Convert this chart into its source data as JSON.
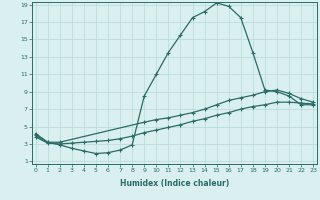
{
  "title": "",
  "xlabel": "Humidex (Indice chaleur)",
  "bg_color": "#daf0f0",
  "grid_color": "#b8d8d8",
  "line_color": "#2a6b65",
  "x_min": 0,
  "x_max": 23,
  "y_min": 1,
  "y_max": 19,
  "line1_x": [
    0,
    1,
    2,
    3,
    4,
    5,
    6,
    7,
    8,
    9,
    10,
    11,
    12,
    13,
    14,
    15,
    16,
    17,
    18,
    19,
    20,
    21,
    22,
    23
  ],
  "line1_y": [
    4.2,
    3.2,
    2.9,
    2.5,
    2.2,
    1.9,
    2.0,
    2.3,
    2.9,
    8.5,
    11.0,
    13.5,
    15.5,
    17.5,
    18.2,
    19.2,
    18.8,
    17.5,
    13.5,
    9.2,
    9.0,
    8.5,
    7.5,
    7.5
  ],
  "line2_x": [
    0,
    1,
    2,
    9,
    10,
    11,
    12,
    13,
    14,
    15,
    16,
    17,
    18,
    19,
    20,
    21,
    22,
    23
  ],
  "line2_y": [
    4.0,
    3.2,
    3.2,
    5.5,
    5.8,
    6.0,
    6.3,
    6.6,
    7.0,
    7.5,
    8.0,
    8.3,
    8.6,
    9.0,
    9.2,
    8.8,
    8.2,
    7.8
  ],
  "line3_x": [
    0,
    1,
    2,
    3,
    4,
    5,
    6,
    7,
    8,
    9,
    10,
    11,
    12,
    13,
    14,
    15,
    16,
    17,
    18,
    19,
    20,
    21,
    22,
    23
  ],
  "line3_y": [
    3.8,
    3.1,
    3.0,
    3.1,
    3.2,
    3.3,
    3.4,
    3.6,
    3.9,
    4.3,
    4.6,
    4.9,
    5.2,
    5.6,
    5.9,
    6.3,
    6.6,
    7.0,
    7.3,
    7.5,
    7.8,
    7.8,
    7.7,
    7.6
  ],
  "yticks": [
    1,
    3,
    5,
    7,
    9,
    11,
    13,
    15,
    17,
    19
  ],
  "xticks": [
    0,
    1,
    2,
    3,
    4,
    5,
    6,
    7,
    8,
    9,
    10,
    11,
    12,
    13,
    14,
    15,
    16,
    17,
    18,
    19,
    20,
    21,
    22,
    23
  ]
}
